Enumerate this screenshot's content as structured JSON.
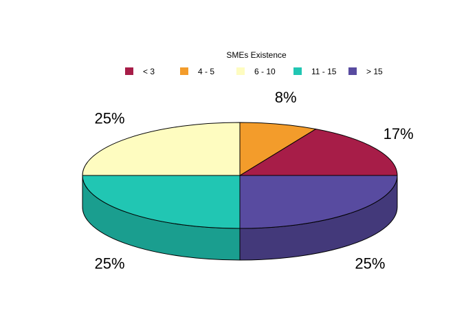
{
  "chart_data": {
    "type": "pie",
    "style": "3d-pie",
    "legend": {
      "title": "SMEs Existence",
      "placement": "top-center"
    },
    "slices": [
      {
        "label": "< 3",
        "value": 17,
        "percent_label": "17%",
        "color": "#A71D48",
        "side_color": "#7F1636"
      },
      {
        "label": "4 - 5",
        "value": 8,
        "percent_label": "8%",
        "color": "#F39C2B",
        "side_color": "#B87420"
      },
      {
        "label": "6 - 10",
        "value": 25,
        "percent_label": "25%",
        "color": "#FEFCC0",
        "side_color": "#D0CE9C"
      },
      {
        "label": "11 - 15",
        "value": 25,
        "percent_label": "25%",
        "color": "#21C6B3",
        "side_color": "#1A9E8F"
      },
      {
        "label": "> 15",
        "value": 25,
        "percent_label": "25%",
        "color": "#584BA0",
        "side_color": "#43397A"
      }
    ]
  }
}
